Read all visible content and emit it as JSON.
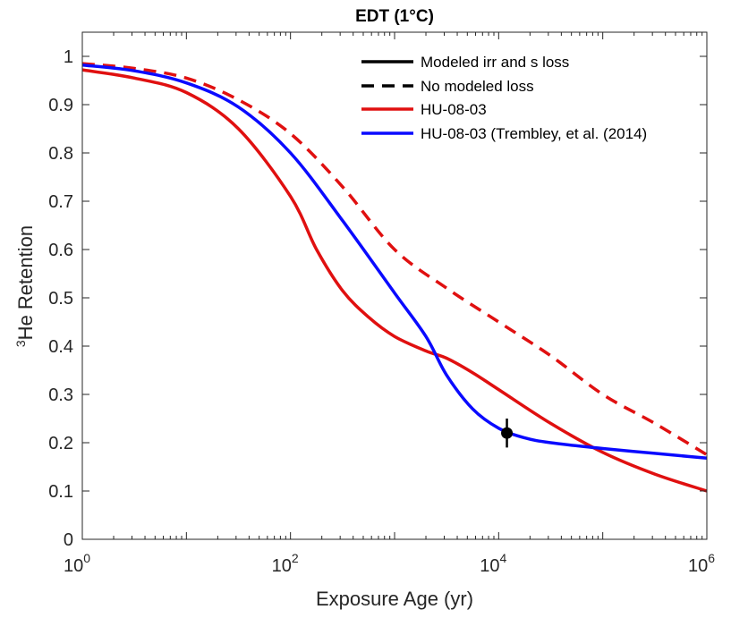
{
  "chart_data": {
    "type": "line",
    "title": "EDT (1°C)",
    "xlabel": "Exposure Age (yr)",
    "ylabel_sup": "3",
    "ylabel_main": "He Retention",
    "xscale": "log",
    "xlim": [
      1,
      1000000
    ],
    "ylim": [
      0,
      1.05
    ],
    "grid": false,
    "legend_position": "top-right",
    "x_ticks": [
      {
        "value": 1,
        "base": "10",
        "exp": "0"
      },
      {
        "value": 100,
        "base": "10",
        "exp": "2"
      },
      {
        "value": 10000,
        "base": "10",
        "exp": "4"
      },
      {
        "value": 1000000,
        "base": "10",
        "exp": "6"
      }
    ],
    "y_ticks": [
      {
        "value": 0,
        "label": "0"
      },
      {
        "value": 0.1,
        "label": "0.1"
      },
      {
        "value": 0.2,
        "label": "0.2"
      },
      {
        "value": 0.3,
        "label": "0.3"
      },
      {
        "value": 0.4,
        "label": "0.4"
      },
      {
        "value": 0.5,
        "label": "0.5"
      },
      {
        "value": 0.6,
        "label": "0.6"
      },
      {
        "value": 0.7,
        "label": "0.7"
      },
      {
        "value": 0.8,
        "label": "0.8"
      },
      {
        "value": 0.9,
        "label": "0.9"
      },
      {
        "value": 1,
        "label": "1"
      }
    ],
    "legend": [
      {
        "label": "Modeled irr and s loss",
        "color": "#000000",
        "dash": "solid"
      },
      {
        "label": "No modeled loss",
        "color": "#000000",
        "dash": "dashed"
      },
      {
        "label": "HU-08-03",
        "color": "#e01010",
        "dash": "solid"
      },
      {
        "label": "HU-08-03 (Trembley, et al. (2014)",
        "color": "#0a0aff",
        "dash": "solid"
      }
    ],
    "series": [
      {
        "color": "#e01010",
        "dash": "solid",
        "x": [
          1,
          3.16,
          10,
          31.6,
          100,
          178,
          316,
          562,
          1000,
          2000,
          3160,
          5620,
          10000,
          31600,
          100000,
          316000,
          1000000
        ],
        "y": [
          0.972,
          0.955,
          0.925,
          0.85,
          0.71,
          0.6,
          0.515,
          0.46,
          0.42,
          0.39,
          0.375,
          0.345,
          0.31,
          0.24,
          0.18,
          0.135,
          0.1
        ]
      },
      {
        "color": "#e01010",
        "dash": "dashed",
        "x": [
          1,
          3.16,
          10,
          31.6,
          100,
          316,
          1000,
          3160,
          10000,
          31600,
          100000,
          316000,
          1000000
        ],
        "y": [
          0.985,
          0.975,
          0.955,
          0.91,
          0.84,
          0.73,
          0.6,
          0.52,
          0.45,
          0.38,
          0.3,
          0.24,
          0.175
        ]
      },
      {
        "color": "#0a0aff",
        "dash": "solid",
        "x": [
          1,
          3.16,
          10,
          31.6,
          100,
          316,
          1000,
          2000,
          3160,
          5620,
          10000,
          17800,
          31600,
          100000,
          316000,
          1000000
        ],
        "y": [
          0.982,
          0.97,
          0.945,
          0.895,
          0.8,
          0.66,
          0.51,
          0.42,
          0.34,
          0.27,
          0.23,
          0.21,
          0.2,
          0.188,
          0.178,
          0.168
        ]
      }
    ],
    "points": [
      {
        "x": 12000,
        "y": 0.22,
        "err_low": 0.19,
        "err_high": 0.25,
        "color": "#000000"
      }
    ]
  }
}
